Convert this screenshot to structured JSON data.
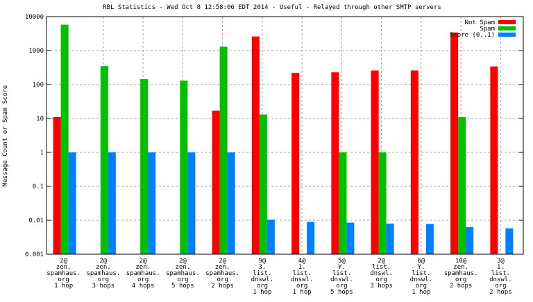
{
  "chart_data": {
    "type": "bar",
    "title": "RBL Statistics - Wed Oct  8 12:58:06 EDT 2014 - Useful - Relayed through other SMTP servers",
    "xlabel": "",
    "ylabel": "Message Count or Spam Score",
    "yscale": "log",
    "ylim": [
      0.001,
      10000
    ],
    "yticks": [
      "10000",
      "1000",
      "100",
      "10",
      "1",
      "0.1",
      "0.01",
      "0.001"
    ],
    "grid": true,
    "legend_position": "top-right",
    "categories": [
      [
        "2@",
        "zen.",
        "spamhaus.",
        "org",
        "1 hop"
      ],
      [
        "2@",
        "zen.",
        "spamhaus.",
        "org",
        "3 hops"
      ],
      [
        "2@",
        "zen.",
        "spamhaus.",
        "org",
        "4 hops"
      ],
      [
        "2@",
        "zen.",
        "spamhaus.",
        "org",
        "5 hops"
      ],
      [
        "2@",
        "zen.",
        "spamhaus.",
        "org",
        "2 hops"
      ],
      [
        "9@",
        "3.",
        "list.",
        "dnswl.",
        "org",
        "1 hop"
      ],
      [
        "4@",
        "1.",
        "list.",
        "dnswl.",
        "org",
        "1 hop"
      ],
      [
        "5@",
        "Y.",
        "list.",
        "dnswl.",
        "org",
        "5 hops"
      ],
      [
        "2@",
        "list.",
        "dnswl.",
        "org",
        "3 hops"
      ],
      [
        "6@",
        "Y.",
        "list.",
        "dnswl.",
        "org",
        "1 hop"
      ],
      [
        "10@",
        "zen.",
        "spamhaus.",
        "org",
        "2 hops"
      ],
      [
        "3@",
        "1.",
        "list.",
        "dnswl.",
        "org",
        "2 hops"
      ]
    ],
    "series": [
      {
        "name": "Not Spam",
        "color": "#ff0000",
        "values": [
          11,
          null,
          null,
          null,
          17,
          2600,
          220,
          230,
          260,
          260,
          3400,
          340
        ]
      },
      {
        "name": "Spam",
        "color": "#00c000",
        "values": [
          5800,
          350,
          145,
          130,
          1300,
          13,
          null,
          1,
          1,
          null,
          11,
          null
        ]
      },
      {
        "name": "Score (0..1)",
        "color": "#0080ff",
        "values": [
          1,
          1,
          1,
          1,
          1,
          0.0105,
          0.009,
          0.0085,
          0.008,
          0.0078,
          0.0063,
          0.0058
        ]
      }
    ]
  }
}
